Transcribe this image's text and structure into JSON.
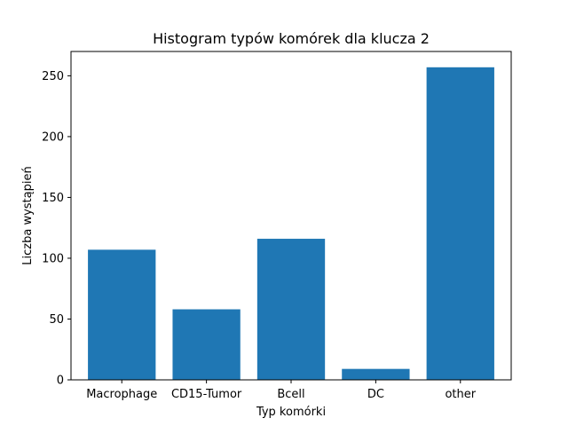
{
  "chart_data": {
    "type": "bar",
    "title": "Histogram typów komórek dla klucza 2",
    "xlabel": "Typ komórki",
    "ylabel": "Liczba wystąpień",
    "categories": [
      "Macrophage",
      "CD15-Tumor",
      "Bcell",
      "DC",
      "other"
    ],
    "values": [
      107,
      58,
      116,
      9,
      257
    ],
    "ylim": [
      0,
      270
    ],
    "yticks": [
      0,
      50,
      100,
      150,
      200,
      250
    ],
    "grid": false,
    "bar_color": "#1f77b4"
  }
}
